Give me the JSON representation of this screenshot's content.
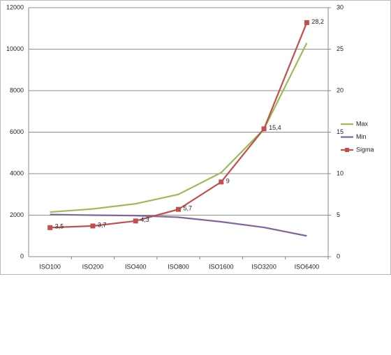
{
  "chart_data": {
    "type": "line",
    "categories": [
      "ISO100",
      "ISO200",
      "ISO400",
      "ISO800",
      "ISO1600",
      "ISO3200",
      "ISO6400"
    ],
    "series": [
      {
        "name": "Max",
        "color": "#9bbb59",
        "values": [
          2150,
          2300,
          2550,
          3000,
          4050,
          6150,
          10300
        ]
      },
      {
        "name": "Min",
        "color": "#8064a2",
        "values": [
          2030,
          2000,
          1980,
          1900,
          1680,
          1410,
          1000
        ]
      },
      {
        "name": "Sigma",
        "color": "#c0504d",
        "axis": "y2",
        "marker": "square",
        "values": [
          3.5,
          3.7,
          4.3,
          5.7,
          9,
          15.4,
          28.2
        ],
        "value_labels": [
          "3,5",
          "3,7",
          "4,3",
          "5,7",
          "9",
          "15,4",
          "28,2"
        ]
      }
    ],
    "ylim": [
      0,
      12000
    ],
    "yticks": [
      0,
      2000,
      4000,
      6000,
      8000,
      10000,
      12000
    ],
    "y2lim": [
      0,
      30
    ],
    "y2ticks": [
      0,
      5,
      10,
      15,
      20,
      25,
      30
    ],
    "grid": true,
    "legend": "right"
  }
}
